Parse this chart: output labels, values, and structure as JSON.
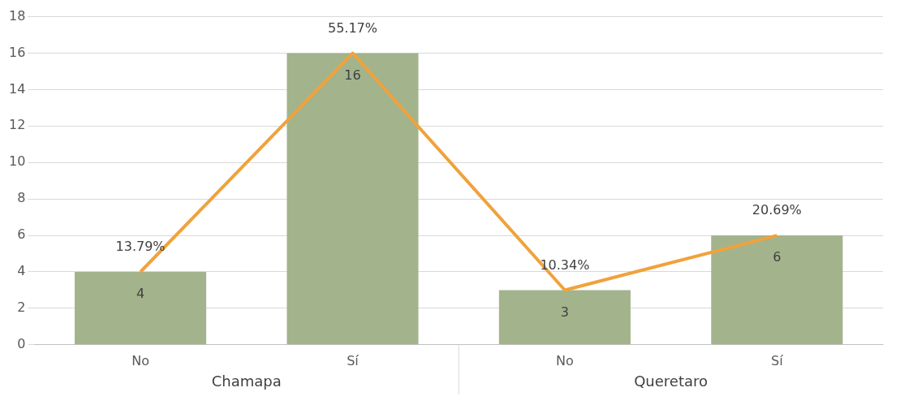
{
  "chart_data": {
    "type": "bar",
    "categories": [
      "No",
      "Sí",
      "No",
      "Sí"
    ],
    "series": [
      {
        "color": "#a3b38c",
        "values": [
          4,
          16,
          3,
          6
        ],
        "value_labels": [
          "4",
          "16",
          "3",
          "6"
        ]
      },
      {
        "type": "line",
        "axis": "y2",
        "color": "#f0a23c",
        "values": [
          13.79,
          55.17,
          10.34,
          20.69
        ],
        "value_labels": [
          "13.79%",
          "55.17%",
          "10.34%",
          "20.69%"
        ]
      }
    ],
    "ylim": [
      0,
      18
    ],
    "y2lim": [
      0,
      62.07
    ],
    "yticks": [
      0,
      2,
      4,
      6,
      8,
      10,
      12,
      14,
      16,
      18
    ],
    "grid": "y",
    "legend": false,
    "marker": "none",
    "annotations": [
      "Chamapa",
      "Queretaro"
    ]
  }
}
